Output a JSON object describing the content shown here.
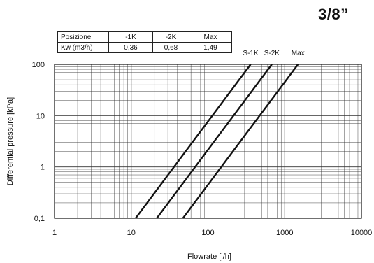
{
  "title": "3/8”",
  "table": {
    "headers": [
      "Posizione",
      "-1K",
      "-2K",
      "Max"
    ],
    "row_label": "Kw (m3/h)",
    "row_values": [
      "0,36",
      "0,68",
      "1,49"
    ]
  },
  "chart_data": {
    "type": "line",
    "xscale": "log",
    "yscale": "log",
    "xlim": [
      1,
      10000
    ],
    "ylim": [
      0.1,
      100
    ],
    "xlabel": "Flowrate [l/h]",
    "ylabel": "Differential pressure [kPa]",
    "xticks": [
      "1",
      "10",
      "100",
      "1000",
      "10000"
    ],
    "yticks": [
      "0,1",
      "1",
      "10",
      "100"
    ],
    "grid": true,
    "series": [
      {
        "name": "S-1K",
        "x": [
          11.4,
          360
        ],
        "y": [
          0.1,
          100
        ]
      },
      {
        "name": "S-2K",
        "x": [
          21.5,
          680
        ],
        "y": [
          0.1,
          100
        ]
      },
      {
        "name": "Max",
        "x": [
          47.1,
          1490
        ],
        "y": [
          0.1,
          100
        ]
      }
    ]
  }
}
